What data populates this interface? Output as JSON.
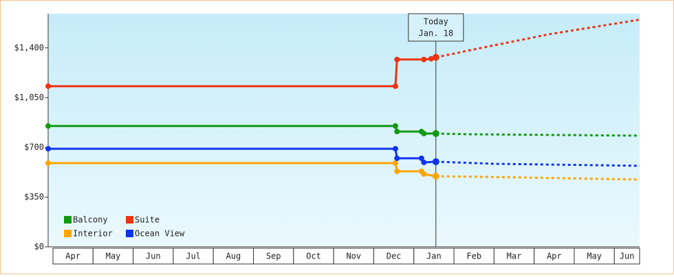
{
  "chart_data": {
    "type": "line",
    "ylim": [
      0,
      1640
    ],
    "yticks": [
      {
        "value": 0,
        "label": "$0"
      },
      {
        "value": 350,
        "label": "$350"
      },
      {
        "value": 700,
        "label": "$700"
      },
      {
        "value": 1050,
        "label": "$1,050"
      },
      {
        "value": 1400,
        "label": "$1,400"
      }
    ],
    "xlim": [
      -0.12,
      14.63
    ],
    "xticks": [
      {
        "value": 0.5,
        "label": "Apr"
      },
      {
        "value": 1.5,
        "label": "May"
      },
      {
        "value": 2.5,
        "label": "Jun"
      },
      {
        "value": 3.5,
        "label": "Jul"
      },
      {
        "value": 4.5,
        "label": "Aug"
      },
      {
        "value": 5.5,
        "label": "Sep"
      },
      {
        "value": 6.5,
        "label": "Oct"
      },
      {
        "value": 7.5,
        "label": "Nov"
      },
      {
        "value": 8.5,
        "label": "Dec"
      },
      {
        "value": 9.5,
        "label": "Jan"
      },
      {
        "value": 10.5,
        "label": "Feb"
      },
      {
        "value": 11.5,
        "label": "Mar"
      },
      {
        "value": 12.5,
        "label": "Apr"
      },
      {
        "value": 13.5,
        "label": "May"
      },
      {
        "value": 14.5,
        "label": "Jun"
      }
    ],
    "series": [
      {
        "name": "Balcony",
        "color": "#119911",
        "x": [
          -0.12,
          8.54,
          8.58,
          9.19,
          9.25,
          9.55
        ],
        "values": [
          850,
          850,
          811,
          811,
          797,
          797
        ],
        "forecast_x": [
          9.55,
          10.34,
          14.63
        ],
        "forecast_values": [
          797,
          792,
          782
        ]
      },
      {
        "name": "Suite",
        "color": "#ee3311",
        "x": [
          -0.12,
          8.54,
          8.58,
          9.25,
          9.43,
          9.55
        ],
        "values": [
          1130,
          1130,
          1318,
          1318,
          1323,
          1333
        ],
        "forecast_x": [
          9.55,
          10.69,
          12.4,
          14.63
        ],
        "forecast_values": [
          1333,
          1400,
          1497,
          1598
        ]
      },
      {
        "name": "Interior",
        "color": "#ffa500",
        "x": [
          -0.12,
          8.54,
          8.58,
          9.19,
          9.25,
          9.55
        ],
        "values": [
          589,
          589,
          531,
          531,
          512,
          497
        ],
        "forecast_x": [
          9.55,
          11.71,
          14.63
        ],
        "forecast_values": [
          497,
          488,
          473
        ]
      },
      {
        "name": "Ocean View",
        "color": "#1133ee",
        "x": [
          -0.12,
          8.54,
          8.58,
          9.19,
          9.25,
          9.55
        ],
        "values": [
          690,
          690,
          623,
          623,
          594,
          599
        ],
        "forecast_x": [
          9.55,
          11.03,
          14.63
        ],
        "forecast_values": [
          599,
          584,
          570
        ]
      }
    ],
    "annotations": [
      {
        "x": 9.55,
        "lines": [
          "Today",
          "Jan. 18"
        ]
      }
    ]
  }
}
